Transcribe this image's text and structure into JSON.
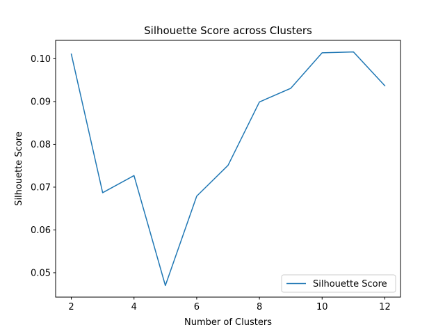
{
  "chart_data": {
    "type": "line",
    "title": "Silhouette Score across Clusters",
    "xlabel": "Number of Clusters",
    "ylabel": "Silhouette Score",
    "x": [
      2,
      3,
      4,
      5,
      6,
      7,
      8,
      9,
      10,
      11,
      12
    ],
    "series": [
      {
        "name": "Silhouette Score",
        "color": "#1f77b4",
        "values": [
          0.1011,
          0.0687,
          0.0727,
          0.047,
          0.0679,
          0.0751,
          0.0899,
          0.0931,
          0.1014,
          0.1016,
          0.0937
        ]
      }
    ],
    "xlim": [
      1.5,
      12.5
    ],
    "ylim": [
      0.0443,
      0.1043
    ],
    "xticks": [
      2,
      4,
      6,
      8,
      10,
      12
    ],
    "xtick_labels": [
      "2",
      "4",
      "6",
      "8",
      "10",
      "12"
    ],
    "yticks": [
      0.05,
      0.06,
      0.07,
      0.08,
      0.09,
      0.1
    ],
    "ytick_labels": [
      "0.05",
      "0.06",
      "0.07",
      "0.08",
      "0.09",
      "0.10"
    ],
    "grid": false,
    "legend_position": "lower right"
  }
}
